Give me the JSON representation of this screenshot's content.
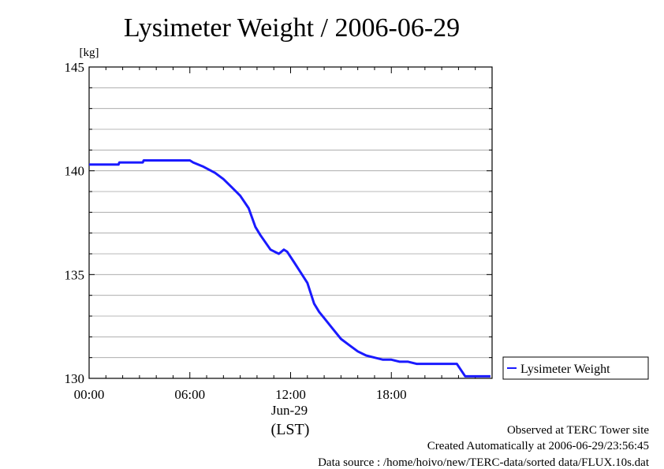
{
  "chart_data": {
    "type": "line",
    "title": "Lysimeter Weight / 2006-06-29",
    "ylabel": "[kg]",
    "xlabel": "(LST)",
    "date_label": "Jun-29",
    "x_unit": "hours",
    "xlim": [
      0,
      24
    ],
    "ylim": [
      130,
      145
    ],
    "x_ticks": [
      {
        "value": 0,
        "label": "00:00"
      },
      {
        "value": 6,
        "label": "06:00"
      },
      {
        "value": 12,
        "label": "12:00"
      },
      {
        "value": 18,
        "label": "18:00"
      }
    ],
    "y_ticks": [
      {
        "value": 130,
        "label": "130"
      },
      {
        "value": 135,
        "label": "135"
      },
      {
        "value": 140,
        "label": "140"
      },
      {
        "value": 145,
        "label": "145"
      }
    ],
    "y_minor_step": 1,
    "grid": true,
    "legend_position": "right",
    "series": [
      {
        "name": "Lysimeter Weight",
        "color": "#1a1aff",
        "x": [
          0.0,
          1.75,
          1.8,
          3.2,
          3.25,
          6.0,
          6.2,
          6.8,
          7.5,
          8.0,
          8.5,
          9.0,
          9.5,
          9.9,
          10.2,
          10.8,
          11.3,
          11.6,
          11.8,
          12.2,
          12.6,
          13.0,
          13.4,
          13.7,
          14.0,
          14.5,
          15.0,
          15.5,
          16.0,
          16.5,
          17.0,
          17.5,
          18.0,
          18.5,
          19.0,
          19.5,
          20.0,
          20.5,
          21.0,
          21.5,
          21.9,
          22.4,
          22.5,
          23.0,
          23.5,
          23.9
        ],
        "values": [
          140.3,
          140.3,
          140.4,
          140.4,
          140.5,
          140.5,
          140.4,
          140.2,
          139.9,
          139.6,
          139.2,
          138.8,
          138.2,
          137.3,
          136.9,
          136.2,
          136.0,
          136.2,
          136.1,
          135.6,
          135.1,
          134.6,
          133.6,
          133.2,
          132.9,
          132.4,
          131.9,
          131.6,
          131.3,
          131.1,
          131.0,
          130.9,
          130.9,
          130.8,
          130.8,
          130.7,
          130.7,
          130.7,
          130.7,
          130.7,
          130.7,
          130.1,
          130.1,
          130.1,
          130.1,
          130.1
        ]
      }
    ]
  },
  "footer": {
    "line1": "Observed at TERC Tower site",
    "line2": "Created Automatically at 2006-06-29/23:56:45",
    "line3": "Data source : /home/hoivo/new/TERC-data/sorted  data/FLUX.10s.dat"
  }
}
